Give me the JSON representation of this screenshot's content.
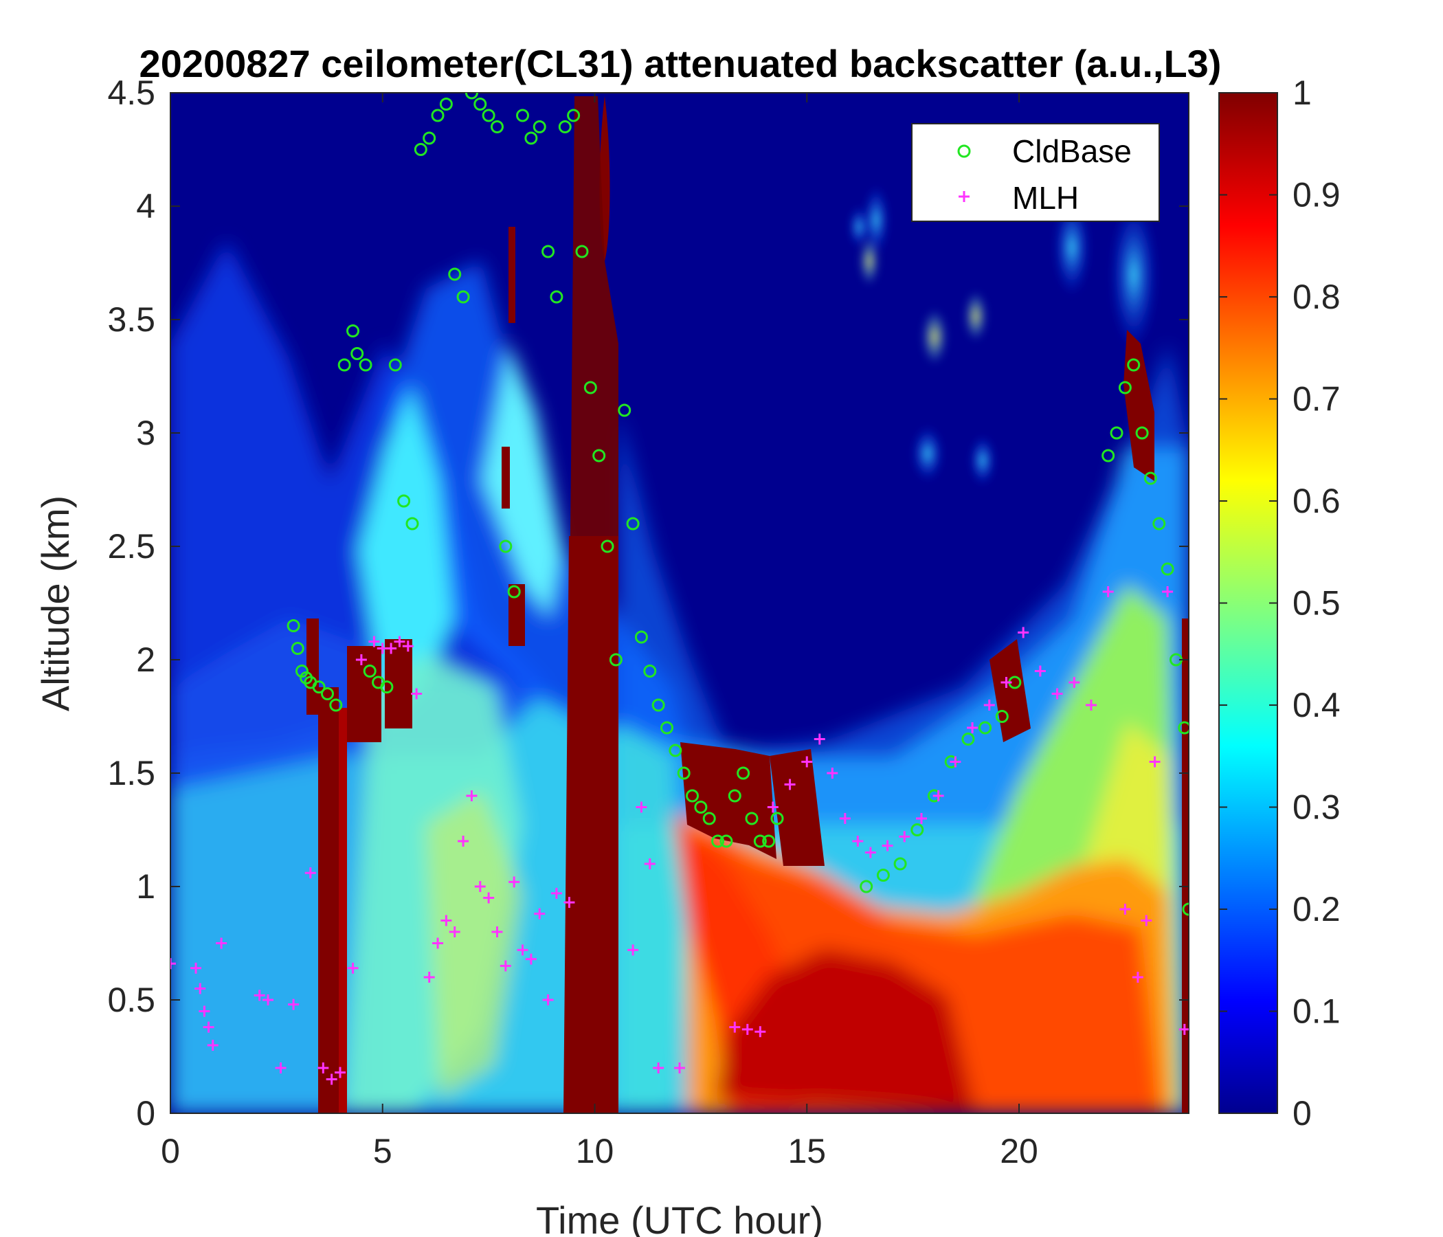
{
  "chart_data": {
    "type": "heatmap",
    "title": "20200827 ceilometer(CL31) attenuated backscatter (a.u.,L3)",
    "xlabel": "Time (UTC hour)",
    "ylabel": "Altitude (km)",
    "xlim": [
      0,
      24
    ],
    "ylim": [
      0,
      4.5
    ],
    "x_ticks": [
      0,
      5,
      10,
      15,
      20
    ],
    "y_ticks": [
      0,
      0.5,
      1,
      1.5,
      2,
      2.5,
      3,
      3.5,
      4,
      4.5
    ],
    "colorbar": {
      "colormap": "jet",
      "range": [
        0,
        1
      ],
      "ticks": [
        0,
        0.1,
        0.2,
        0.3,
        0.4,
        0.5,
        0.6,
        0.7,
        0.8,
        0.9,
        1
      ]
    },
    "legend": {
      "position": "top-right",
      "entries": [
        {
          "label": "CldBase",
          "marker": "circle",
          "color": "#22e622"
        },
        {
          "label": "MLH",
          "marker": "plus",
          "color": "#ff33ff"
        }
      ]
    },
    "series": [
      {
        "name": "CldBase",
        "marker": "circle",
        "x": [
          2.9,
          3.0,
          3.1,
          3.2,
          3.3,
          3.5,
          3.7,
          3.9,
          4.1,
          4.3,
          4.4,
          4.6,
          4.7,
          4.9,
          5.1,
          5.3,
          5.5,
          5.7,
          5.9,
          6.1,
          6.3,
          6.5,
          6.7,
          6.9,
          7.1,
          7.3,
          7.5,
          7.7,
          7.9,
          8.1,
          8.3,
          8.5,
          8.7,
          8.9,
          9.1,
          9.3,
          9.5,
          9.7,
          9.9,
          10.1,
          10.3,
          10.5,
          10.7,
          10.9,
          11.1,
          11.3,
          11.5,
          11.7,
          11.9,
          12.1,
          12.3,
          12.5,
          12.7,
          12.9,
          13.1,
          13.3,
          13.5,
          13.7,
          13.9,
          14.1,
          14.3,
          16.4,
          16.8,
          17.2,
          17.6,
          18.0,
          18.4,
          18.8,
          19.2,
          19.6,
          19.9,
          22.1,
          22.3,
          22.5,
          22.7,
          22.9,
          23.1,
          23.3,
          23.5,
          23.7,
          23.9,
          24.0
        ],
        "y": [
          2.15,
          2.05,
          1.95,
          1.92,
          1.9,
          1.88,
          1.85,
          1.8,
          3.3,
          3.45,
          3.35,
          3.3,
          1.95,
          1.9,
          1.88,
          3.3,
          2.7,
          2.6,
          4.25,
          4.3,
          4.4,
          4.45,
          3.7,
          3.6,
          4.5,
          4.45,
          4.4,
          4.35,
          2.5,
          2.3,
          4.4,
          4.3,
          4.35,
          3.8,
          3.6,
          4.35,
          4.4,
          3.8,
          3.2,
          2.9,
          2.5,
          2.0,
          3.1,
          2.6,
          2.1,
          1.95,
          1.8,
          1.7,
          1.6,
          1.5,
          1.4,
          1.35,
          1.3,
          1.2,
          1.2,
          1.4,
          1.5,
          1.3,
          1.2,
          1.2,
          1.3,
          1.0,
          1.05,
          1.1,
          1.25,
          1.4,
          1.55,
          1.65,
          1.7,
          1.75,
          1.9,
          2.9,
          3.0,
          3.2,
          3.3,
          3.0,
          2.8,
          2.6,
          2.4,
          2.0,
          1.7,
          0.9
        ]
      },
      {
        "name": "MLH",
        "marker": "plus",
        "x": [
          0.0,
          0.6,
          0.7,
          0.8,
          0.9,
          1.0,
          1.2,
          2.1,
          2.3,
          2.6,
          2.9,
          3.3,
          3.6,
          3.8,
          4.0,
          4.3,
          4.5,
          4.8,
          5.0,
          5.2,
          5.4,
          5.6,
          5.8,
          6.1,
          6.3,
          6.5,
          6.7,
          6.9,
          7.1,
          7.3,
          7.5,
          7.7,
          7.9,
          8.1,
          8.3,
          8.5,
          8.7,
          8.9,
          9.1,
          9.4,
          10.9,
          11.1,
          11.3,
          11.5,
          12.0,
          13.3,
          13.6,
          13.9,
          14.2,
          14.6,
          15.0,
          15.3,
          15.6,
          15.9,
          16.2,
          16.5,
          16.9,
          17.3,
          17.7,
          18.1,
          18.5,
          18.9,
          19.3,
          19.7,
          20.1,
          20.5,
          20.9,
          21.3,
          21.7,
          22.1,
          22.5,
          22.8,
          23.0,
          23.2,
          23.5,
          23.9
        ],
        "y": [
          0.66,
          0.64,
          0.55,
          0.45,
          0.38,
          0.3,
          0.75,
          0.52,
          0.5,
          0.2,
          0.48,
          1.06,
          0.2,
          0.15,
          0.18,
          0.64,
          2.0,
          2.08,
          2.05,
          2.05,
          2.08,
          2.06,
          1.85,
          0.6,
          0.75,
          0.85,
          0.8,
          1.2,
          1.4,
          1.0,
          0.95,
          0.8,
          0.65,
          1.02,
          0.72,
          0.68,
          0.88,
          0.5,
          0.97,
          0.93,
          0.72,
          1.35,
          1.1,
          0.2,
          0.2,
          0.38,
          0.37,
          0.36,
          1.35,
          1.45,
          1.55,
          1.65,
          1.5,
          1.3,
          1.2,
          1.15,
          1.18,
          1.22,
          1.3,
          1.4,
          1.55,
          1.7,
          1.8,
          1.9,
          2.12,
          1.95,
          1.85,
          1.9,
          1.8,
          2.3,
          0.9,
          0.6,
          0.85,
          1.55,
          2.3,
          0.37
        ]
      }
    ]
  }
}
